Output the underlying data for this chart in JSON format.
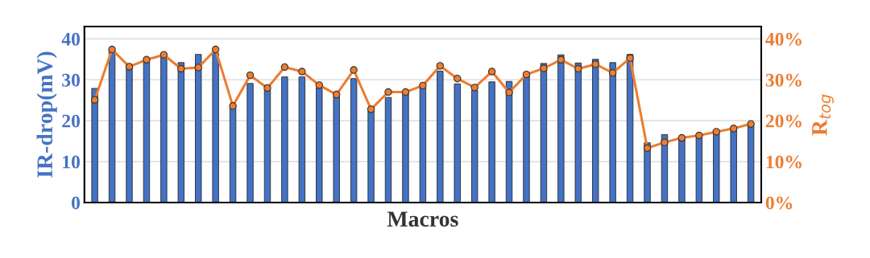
{
  "chart_data": {
    "type": "bar",
    "xlabel": "Macros",
    "ylabel": "IR-drop(mV)",
    "y2label": "R$_{tog}$",
    "categories": [
      null,
      null,
      null,
      null,
      null,
      null,
      null,
      null,
      null,
      null,
      null,
      null,
      null,
      null,
      null,
      null,
      null,
      null,
      null,
      null,
      null,
      null,
      null,
      null,
      null,
      null,
      null,
      null,
      null,
      null,
      null,
      null,
      null,
      null,
      null,
      null,
      null,
      null,
      null
    ],
    "series": [
      {
        "color": "#4472c4",
        "values": [
          27.9,
          37.2,
          33.2,
          34.5,
          35.5,
          34.2,
          36.2,
          36.5,
          23.4,
          29.1,
          27.6,
          30.7,
          30.7,
          28.1,
          26.0,
          30.3,
          22.4,
          25.7,
          26.8,
          28.1,
          32.1,
          29.0,
          27.4,
          29.5,
          29.6,
          31.0,
          34.0,
          36.1,
          34.1,
          35.0,
          34.2,
          36.2,
          14.6,
          16.6,
          16.1,
          16.4,
          17.1,
          18.1,
          18.9
        ]
      },
      {
        "type": "line",
        "axis": "y2",
        "color": "#ed7d31",
        "marker": "circle",
        "line_style": "solid",
        "values": [
          25.1,
          37.4,
          33.2,
          34.9,
          36.1,
          32.7,
          33.0,
          37.4,
          23.6,
          31.1,
          28.0,
          33.1,
          32.0,
          28.7,
          26.4,
          32.4,
          22.8,
          27.0,
          27.0,
          28.6,
          33.4,
          30.3,
          28.1,
          32.0,
          26.9,
          31.3,
          32.8,
          34.9,
          32.7,
          33.8,
          31.7,
          35.3,
          13.3,
          14.7,
          15.8,
          16.4,
          17.3,
          18.1,
          19.2
        ]
      }
    ],
    "ylim": [
      0,
      43
    ],
    "yticks": [
      0,
      10,
      20,
      30,
      40
    ],
    "y2lim": [
      0,
      43
    ],
    "y2ticks": [
      {
        "value": 0,
        "label": "0%"
      },
      {
        "value": 10,
        "label": "10%"
      },
      {
        "value": 20,
        "label": "20%"
      },
      {
        "value": 30,
        "label": "30%"
      },
      {
        "value": 40,
        "label": "40%"
      }
    ],
    "grid": "y",
    "legend": false
  }
}
